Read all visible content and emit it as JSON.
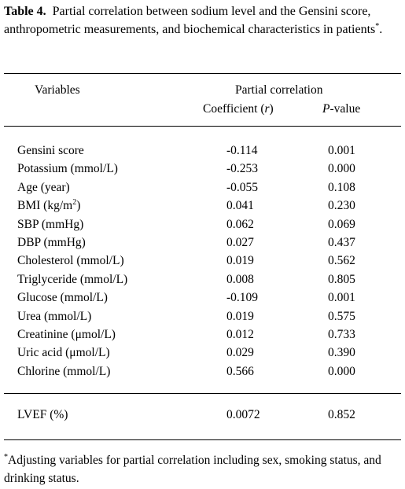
{
  "caption": {
    "label": "Table 4.",
    "text": "Partial correlation between sodium level and the Gensini score, anthropometric measurements, and biochemical characteristics in patients",
    "marker": "*"
  },
  "header": {
    "variables": "Variables",
    "group": "Partial correlation",
    "coef_prefix": "Coefficient (",
    "coef_symbol": "r",
    "coef_suffix": ")",
    "p_letter": "P",
    "p_suffix": "-value"
  },
  "rows": [
    {
      "variable": "Gensini score",
      "coefficient": "-0.114",
      "p": "0.001"
    },
    {
      "variable": "Potassium (mmol/L)",
      "coefficient": "-0.253",
      "p": "0.000"
    },
    {
      "variable": "Age (year)",
      "coefficient": "-0.055",
      "p": "0.108"
    },
    {
      "variable": "BMI (kg/m",
      "variable_sup": "2",
      "variable_tail": ")",
      "coefficient": "0.041",
      "p": "0.230"
    },
    {
      "variable": "SBP (mmHg)",
      "coefficient": "0.062",
      "p": "0.069"
    },
    {
      "variable": "DBP (mmHg)",
      "coefficient": "0.027",
      "p": "0.437"
    },
    {
      "variable": "Cholesterol (mmol/L)",
      "coefficient": "0.019",
      "p": "0.562"
    },
    {
      "variable": "Triglyceride (mmol/L)",
      "coefficient": "0.008",
      "p": "0.805"
    },
    {
      "variable": "Glucose (mmol/L)",
      "coefficient": "-0.109",
      "p": "0.001"
    },
    {
      "variable": "Urea (mmol/L)",
      "coefficient": "0.019",
      "p": "0.575"
    },
    {
      "variable": "Creatinine (μmol/L)",
      "coefficient": "0.012",
      "p": "0.733"
    },
    {
      "variable": "Uric acid (μmol/L)",
      "coefficient": "0.029",
      "p": "0.390"
    },
    {
      "variable": "Chlorine (mmol/L)",
      "coefficient": "0.566",
      "p": "0.000"
    }
  ],
  "lvef_row": {
    "variable": "LVEF (%)",
    "coefficient": "0.0072",
    "p": "0.852"
  },
  "footnote": {
    "marker": "*",
    "text": "Adjusting variables for partial correlation including sex, smoking status, and drinking status."
  }
}
